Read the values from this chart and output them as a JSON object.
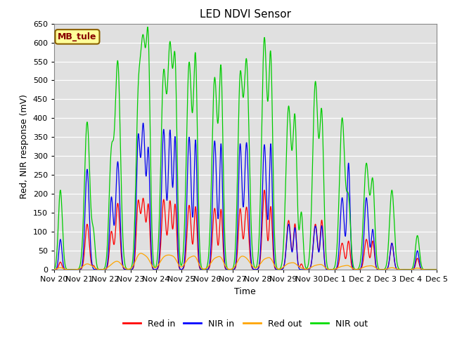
{
  "title": "LED NDVI Sensor",
  "xlabel": "Time",
  "ylabel": "Red, NIR response (mV)",
  "label_text": "MB_tule",
  "ylim": [
    0,
    650
  ],
  "legend_entries": [
    "Red in",
    "NIR in",
    "Red out",
    "NIR out"
  ],
  "legend_colors": [
    "#ff0000",
    "#0000ff",
    "#ffa500",
    "#00dd00"
  ],
  "x_tick_labels": [
    "Nov 20",
    "Nov 21",
    "Nov 22",
    "Nov 23",
    "Nov 24",
    "Nov 25",
    "Nov 26",
    "Nov 27",
    "Nov 28",
    "Nov 29",
    "Nov 30",
    "Dec 1",
    "Dec 2",
    "Dec 3",
    "Dec 4",
    "Dec 5"
  ],
  "spike_params": [
    [
      0.25,
      20,
      80,
      210,
      5,
      0.06
    ],
    [
      1.3,
      120,
      265,
      390,
      15,
      0.08
    ],
    [
      1.55,
      10,
      0,
      85,
      3,
      0.05
    ],
    [
      2.25,
      100,
      190,
      295,
      8,
      0.07
    ],
    [
      2.5,
      175,
      285,
      545,
      20,
      0.08
    ],
    [
      3.3,
      175,
      340,
      395,
      25,
      0.07
    ],
    [
      3.5,
      185,
      380,
      565,
      28,
      0.08
    ],
    [
      3.7,
      165,
      305,
      530,
      15,
      0.06
    ],
    [
      4.3,
      185,
      370,
      515,
      28,
      0.08
    ],
    [
      4.55,
      180,
      365,
      555,
      25,
      0.07
    ],
    [
      4.75,
      170,
      345,
      515,
      20,
      0.06
    ],
    [
      5.3,
      170,
      350,
      545,
      28,
      0.08
    ],
    [
      5.55,
      165,
      340,
      540,
      25,
      0.06
    ],
    [
      6.3,
      162,
      340,
      505,
      27,
      0.08
    ],
    [
      6.55,
      158,
      330,
      510,
      24,
      0.06
    ],
    [
      7.3,
      160,
      330,
      490,
      25,
      0.07
    ],
    [
      7.55,
      165,
      335,
      545,
      25,
      0.08
    ],
    [
      8.25,
      210,
      330,
      610,
      25,
      0.08
    ],
    [
      8.5,
      165,
      330,
      540,
      22,
      0.06
    ],
    [
      9.2,
      130,
      120,
      430,
      15,
      0.08
    ],
    [
      9.45,
      120,
      110,
      385,
      12,
      0.06
    ],
    [
      9.7,
      15,
      0,
      150,
      3,
      0.05
    ],
    [
      10.25,
      120,
      115,
      495,
      10,
      0.08
    ],
    [
      10.5,
      130,
      115,
      395,
      10,
      0.06
    ],
    [
      11.3,
      70,
      190,
      400,
      8,
      0.08
    ],
    [
      11.55,
      75,
      280,
      175,
      8,
      0.06
    ],
    [
      12.25,
      80,
      190,
      280,
      8,
      0.08
    ],
    [
      12.5,
      75,
      105,
      225,
      7,
      0.06
    ],
    [
      13.25,
      70,
      70,
      210,
      5,
      0.07
    ],
    [
      14.25,
      30,
      50,
      90,
      4,
      0.06
    ]
  ]
}
